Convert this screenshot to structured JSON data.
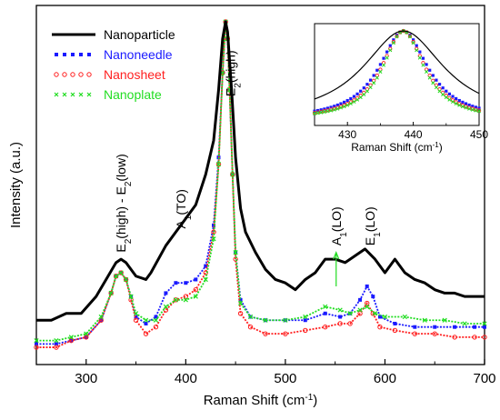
{
  "chart_data": {
    "type": "line",
    "xlabel": "Raman Shift (cm",
    "xlabel_sup": "-1",
    "xlabel_end": ")",
    "ylabel": "Intensity (a.u.)",
    "xlim": [
      250,
      700
    ],
    "ylim": [
      0,
      1
    ],
    "xticks": [
      "300",
      "400",
      "500",
      "600",
      "700"
    ],
    "legend_position": "top-left",
    "series": [
      {
        "name": "Nanoparticle",
        "color": "#000000",
        "style": "line",
        "points": [
          [
            250,
            0.12
          ],
          [
            265,
            0.12
          ],
          [
            280,
            0.14
          ],
          [
            295,
            0.14
          ],
          [
            310,
            0.19
          ],
          [
            320,
            0.24
          ],
          [
            330,
            0.29
          ],
          [
            335,
            0.3
          ],
          [
            340,
            0.29
          ],
          [
            350,
            0.25
          ],
          [
            360,
            0.24
          ],
          [
            365,
            0.26
          ],
          [
            380,
            0.34
          ],
          [
            390,
            0.38
          ],
          [
            400,
            0.42
          ],
          [
            410,
            0.46
          ],
          [
            420,
            0.55
          ],
          [
            428,
            0.65
          ],
          [
            433,
            0.8
          ],
          [
            437,
            0.95
          ],
          [
            440,
            1.0
          ],
          [
            442,
            0.97
          ],
          [
            446,
            0.8
          ],
          [
            450,
            0.6
          ],
          [
            455,
            0.45
          ],
          [
            460,
            0.38
          ],
          [
            470,
            0.32
          ],
          [
            480,
            0.27
          ],
          [
            490,
            0.24
          ],
          [
            500,
            0.23
          ],
          [
            510,
            0.21
          ],
          [
            520,
            0.24
          ],
          [
            530,
            0.26
          ],
          [
            540,
            0.3
          ],
          [
            550,
            0.3
          ],
          [
            560,
            0.29
          ],
          [
            570,
            0.31
          ],
          [
            580,
            0.33
          ],
          [
            590,
            0.3
          ],
          [
            600,
            0.26
          ],
          [
            610,
            0.3
          ],
          [
            620,
            0.26
          ],
          [
            630,
            0.24
          ],
          [
            640,
            0.23
          ],
          [
            650,
            0.21
          ],
          [
            660,
            0.2
          ],
          [
            670,
            0.2
          ],
          [
            680,
            0.19
          ],
          [
            690,
            0.19
          ],
          [
            700,
            0.19
          ]
        ]
      },
      {
        "name": "Nanoneedle",
        "color": "#1a1aff",
        "style": "squares",
        "points": [
          [
            250,
            0.05
          ],
          [
            270,
            0.05
          ],
          [
            285,
            0.06
          ],
          [
            300,
            0.07
          ],
          [
            315,
            0.12
          ],
          [
            325,
            0.2
          ],
          [
            330,
            0.25
          ],
          [
            335,
            0.26
          ],
          [
            340,
            0.24
          ],
          [
            345,
            0.19
          ],
          [
            350,
            0.13
          ],
          [
            360,
            0.11
          ],
          [
            370,
            0.13
          ],
          [
            380,
            0.2
          ],
          [
            390,
            0.23
          ],
          [
            400,
            0.23
          ],
          [
            410,
            0.24
          ],
          [
            420,
            0.28
          ],
          [
            428,
            0.4
          ],
          [
            433,
            0.6
          ],
          [
            437,
            0.85
          ],
          [
            440,
            1.0
          ],
          [
            442,
            0.95
          ],
          [
            444,
            0.8
          ],
          [
            447,
            0.55
          ],
          [
            450,
            0.32
          ],
          [
            455,
            0.18
          ],
          [
            465,
            0.13
          ],
          [
            480,
            0.12
          ],
          [
            500,
            0.12
          ],
          [
            520,
            0.12
          ],
          [
            540,
            0.14
          ],
          [
            555,
            0.13
          ],
          [
            565,
            0.14
          ],
          [
            575,
            0.18
          ],
          [
            582,
            0.22
          ],
          [
            588,
            0.19
          ],
          [
            595,
            0.13
          ],
          [
            610,
            0.11
          ],
          [
            630,
            0.1
          ],
          [
            650,
            0.1
          ],
          [
            670,
            0.1
          ],
          [
            690,
            0.1
          ],
          [
            700,
            0.1
          ]
        ]
      },
      {
        "name": "Nanosheet",
        "color": "#ff2020",
        "style": "circles",
        "points": [
          [
            250,
            0.04
          ],
          [
            270,
            0.04
          ],
          [
            285,
            0.06
          ],
          [
            300,
            0.07
          ],
          [
            315,
            0.12
          ],
          [
            325,
            0.2
          ],
          [
            330,
            0.25
          ],
          [
            335,
            0.26
          ],
          [
            340,
            0.24
          ],
          [
            345,
            0.18
          ],
          [
            350,
            0.12
          ],
          [
            360,
            0.08
          ],
          [
            370,
            0.1
          ],
          [
            380,
            0.15
          ],
          [
            390,
            0.18
          ],
          [
            400,
            0.19
          ],
          [
            410,
            0.21
          ],
          [
            420,
            0.26
          ],
          [
            428,
            0.38
          ],
          [
            433,
            0.58
          ],
          [
            437,
            0.85
          ],
          [
            440,
            1.0
          ],
          [
            442,
            0.95
          ],
          [
            444,
            0.8
          ],
          [
            447,
            0.55
          ],
          [
            450,
            0.3
          ],
          [
            455,
            0.14
          ],
          [
            465,
            0.1
          ],
          [
            480,
            0.08
          ],
          [
            500,
            0.08
          ],
          [
            520,
            0.09
          ],
          [
            540,
            0.1
          ],
          [
            555,
            0.11
          ],
          [
            565,
            0.11
          ],
          [
            575,
            0.14
          ],
          [
            582,
            0.17
          ],
          [
            588,
            0.14
          ],
          [
            595,
            0.1
          ],
          [
            610,
            0.09
          ],
          [
            630,
            0.08
          ],
          [
            650,
            0.08
          ],
          [
            670,
            0.07
          ],
          [
            690,
            0.07
          ],
          [
            700,
            0.07
          ]
        ]
      },
      {
        "name": "Nanoplate",
        "color": "#22dd22",
        "style": "crosses",
        "points": [
          [
            250,
            0.06
          ],
          [
            270,
            0.06
          ],
          [
            285,
            0.07
          ],
          [
            300,
            0.08
          ],
          [
            315,
            0.13
          ],
          [
            325,
            0.2
          ],
          [
            330,
            0.25
          ],
          [
            335,
            0.26
          ],
          [
            340,
            0.24
          ],
          [
            345,
            0.19
          ],
          [
            350,
            0.14
          ],
          [
            360,
            0.12
          ],
          [
            370,
            0.12
          ],
          [
            380,
            0.16
          ],
          [
            390,
            0.18
          ],
          [
            400,
            0.18
          ],
          [
            410,
            0.19
          ],
          [
            420,
            0.24
          ],
          [
            428,
            0.36
          ],
          [
            433,
            0.58
          ],
          [
            437,
            0.85
          ],
          [
            440,
            1.0
          ],
          [
            442,
            0.95
          ],
          [
            444,
            0.8
          ],
          [
            447,
            0.55
          ],
          [
            450,
            0.32
          ],
          [
            455,
            0.17
          ],
          [
            465,
            0.13
          ],
          [
            480,
            0.12
          ],
          [
            500,
            0.12
          ],
          [
            520,
            0.13
          ],
          [
            540,
            0.16
          ],
          [
            555,
            0.15
          ],
          [
            565,
            0.14
          ],
          [
            575,
            0.15
          ],
          [
            582,
            0.16
          ],
          [
            590,
            0.14
          ],
          [
            600,
            0.13
          ],
          [
            620,
            0.13
          ],
          [
            640,
            0.12
          ],
          [
            660,
            0.12
          ],
          [
            680,
            0.11
          ],
          [
            700,
            0.11
          ]
        ]
      }
    ],
    "annotations": [
      {
        "text": "E2(high)",
        "parts": [
          "E",
          "2",
          "(high)"
        ],
        "x": 445,
        "y": 0.78,
        "rotate": -90
      },
      {
        "text": "E2(high) - E2(low)",
        "parts": [
          "E",
          "2",
          "(high) - E",
          "2",
          "(low)"
        ],
        "x": 335,
        "y": 0.32,
        "rotate": -90
      },
      {
        "text": "A1(TO)",
        "parts": [
          "A",
          "1",
          "(TO)"
        ],
        "x": 395,
        "y": 0.39,
        "rotate": -90
      },
      {
        "text": "A1(LO)",
        "parts": [
          "A",
          "1",
          "(LO)"
        ],
        "x": 551,
        "y": 0.34,
        "rotate": -90
      },
      {
        "text": "E1(LO)",
        "parts": [
          "E",
          "1",
          "(LO)"
        ],
        "x": 585,
        "y": 0.34,
        "rotate": -90
      }
    ],
    "inset": {
      "type": "line",
      "xlabel": "Raman Shift (cm",
      "xlabel_sup": "-1",
      "xlabel_end": ")",
      "xlim": [
        425,
        450
      ],
      "ylim": [
        0,
        1
      ],
      "xticks": [
        "430",
        "440",
        "450"
      ],
      "center": 438.5,
      "widths": {
        "Nanoparticle": 7.5,
        "Nanoneedle": 4.5,
        "Nanosheet": 4.0,
        "Nanoplate": 3.8
      }
    }
  }
}
